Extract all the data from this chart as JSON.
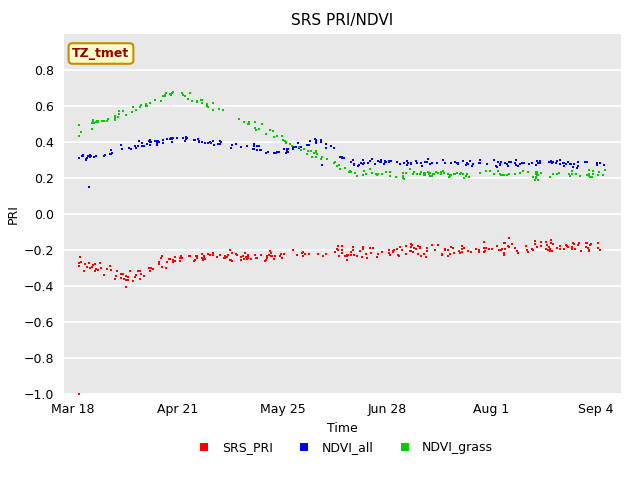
{
  "title": "SRS PRI/NDVI",
  "xlabel": "Time",
  "ylabel": "PRI",
  "ylim": [
    -1.0,
    1.0
  ],
  "yticks": [
    -1.0,
    -0.8,
    -0.6,
    -0.4,
    -0.2,
    0.0,
    0.2,
    0.4,
    0.6,
    0.8
  ],
  "xtick_labels": [
    "Mar 18",
    "Apr 21",
    "May 25",
    "Jun 28",
    "Aug 1",
    "Sep 4"
  ],
  "fig_bg_color": "#ffffff",
  "plot_bg_color": "#e8e8e8",
  "grid_color": "#ffffff",
  "srs_pri_color": "#ff0000",
  "ndvi_all_color": "#0000ff",
  "ndvi_grass_color": "#00cc00",
  "label_box_color": "#ffffcc",
  "label_text_color": "#990000",
  "label_border_color": "#cc8800",
  "annotation_label": "TZ_tmet",
  "legend_labels": [
    "SRS_PRI",
    "NDVI_all",
    "NDVI_grass"
  ],
  "marker": "s",
  "markersize": 2.0,
  "linestyle": "none",
  "total_days": 176,
  "tick_days": [
    0,
    34,
    68,
    102,
    136,
    170
  ]
}
